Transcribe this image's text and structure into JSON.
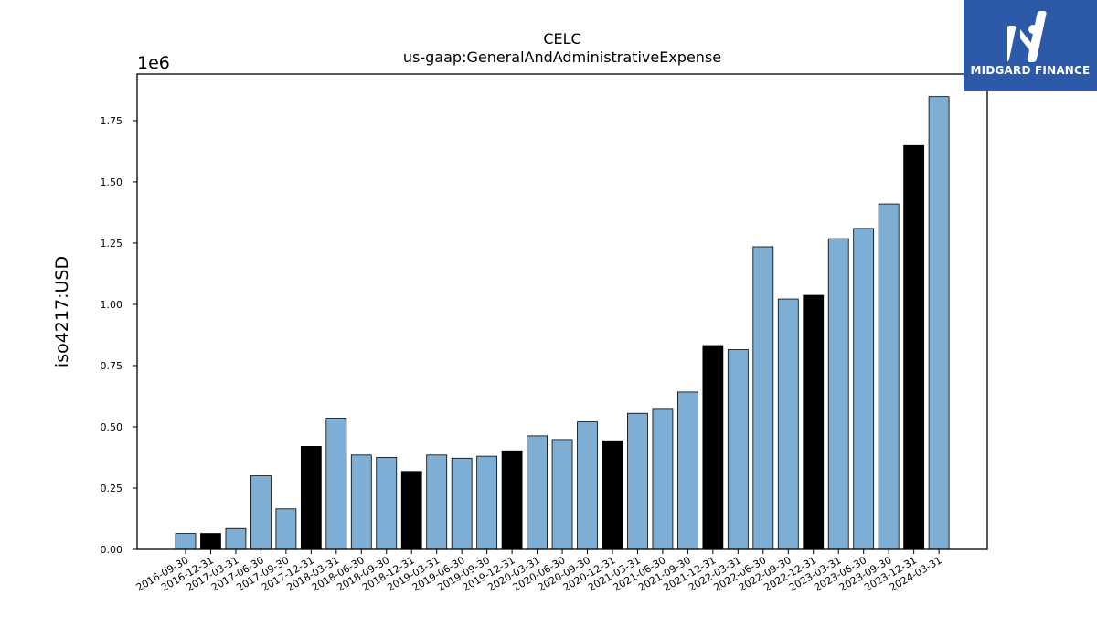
{
  "brand": {
    "name": "MIDGARD FINANCE",
    "background": "#2c5aa8"
  },
  "chart_data": {
    "type": "bar",
    "title": "CELC",
    "subtitle": "us-gaap:GeneralAndAdministrativeExpense",
    "ylabel": "iso4217:USD",
    "xlabel": "",
    "y_scale_label": "1e6",
    "ylim": [
      0,
      1940000
    ],
    "yticks": [
      {
        "value": 0,
        "label": "0.00"
      },
      {
        "value": 250000,
        "label": "0.25"
      },
      {
        "value": 500000,
        "label": "0.50"
      },
      {
        "value": 750000,
        "label": "0.75"
      },
      {
        "value": 1000000,
        "label": "1.00"
      },
      {
        "value": 1250000,
        "label": "1.25"
      },
      {
        "value": 1500000,
        "label": "1.50"
      },
      {
        "value": 1750000,
        "label": "1.75"
      }
    ],
    "grid": false,
    "colors": {
      "quarter": "#7eaed3",
      "year_end": "#000000",
      "edge": "#000000"
    },
    "categories": [
      "2016-09-30",
      "2016-12-31",
      "2017-03-31",
      "2017-06-30",
      "2017-09-30",
      "2017-12-31",
      "2018-03-31",
      "2018-06-30",
      "2018-09-30",
      "2018-12-31",
      "2019-03-31",
      "2019-06-30",
      "2019-09-30",
      "2019-12-31",
      "2020-03-31",
      "2020-06-30",
      "2020-09-30",
      "2020-12-31",
      "2021-03-31",
      "2021-06-30",
      "2021-09-30",
      "2021-12-31",
      "2022-03-31",
      "2022-06-30",
      "2022-09-30",
      "2022-12-31",
      "2023-03-31",
      "2023-06-30",
      "2023-09-30",
      "2023-12-31",
      "2024-03-31"
    ],
    "values": [
      65000,
      65000,
      85000,
      300000,
      165000,
      420000,
      535000,
      385000,
      375000,
      318000,
      385000,
      372000,
      380000,
      402000,
      463000,
      448000,
      520000,
      443000,
      555000,
      575000,
      642000,
      832000,
      815000,
      1235000,
      1022000,
      1037000,
      1268000,
      1310000,
      1410000,
      1648000,
      1848000
    ],
    "highlight": [
      false,
      true,
      false,
      false,
      false,
      true,
      false,
      false,
      false,
      true,
      false,
      false,
      false,
      true,
      false,
      false,
      false,
      true,
      false,
      false,
      false,
      true,
      false,
      false,
      false,
      true,
      false,
      false,
      false,
      true,
      false
    ]
  }
}
